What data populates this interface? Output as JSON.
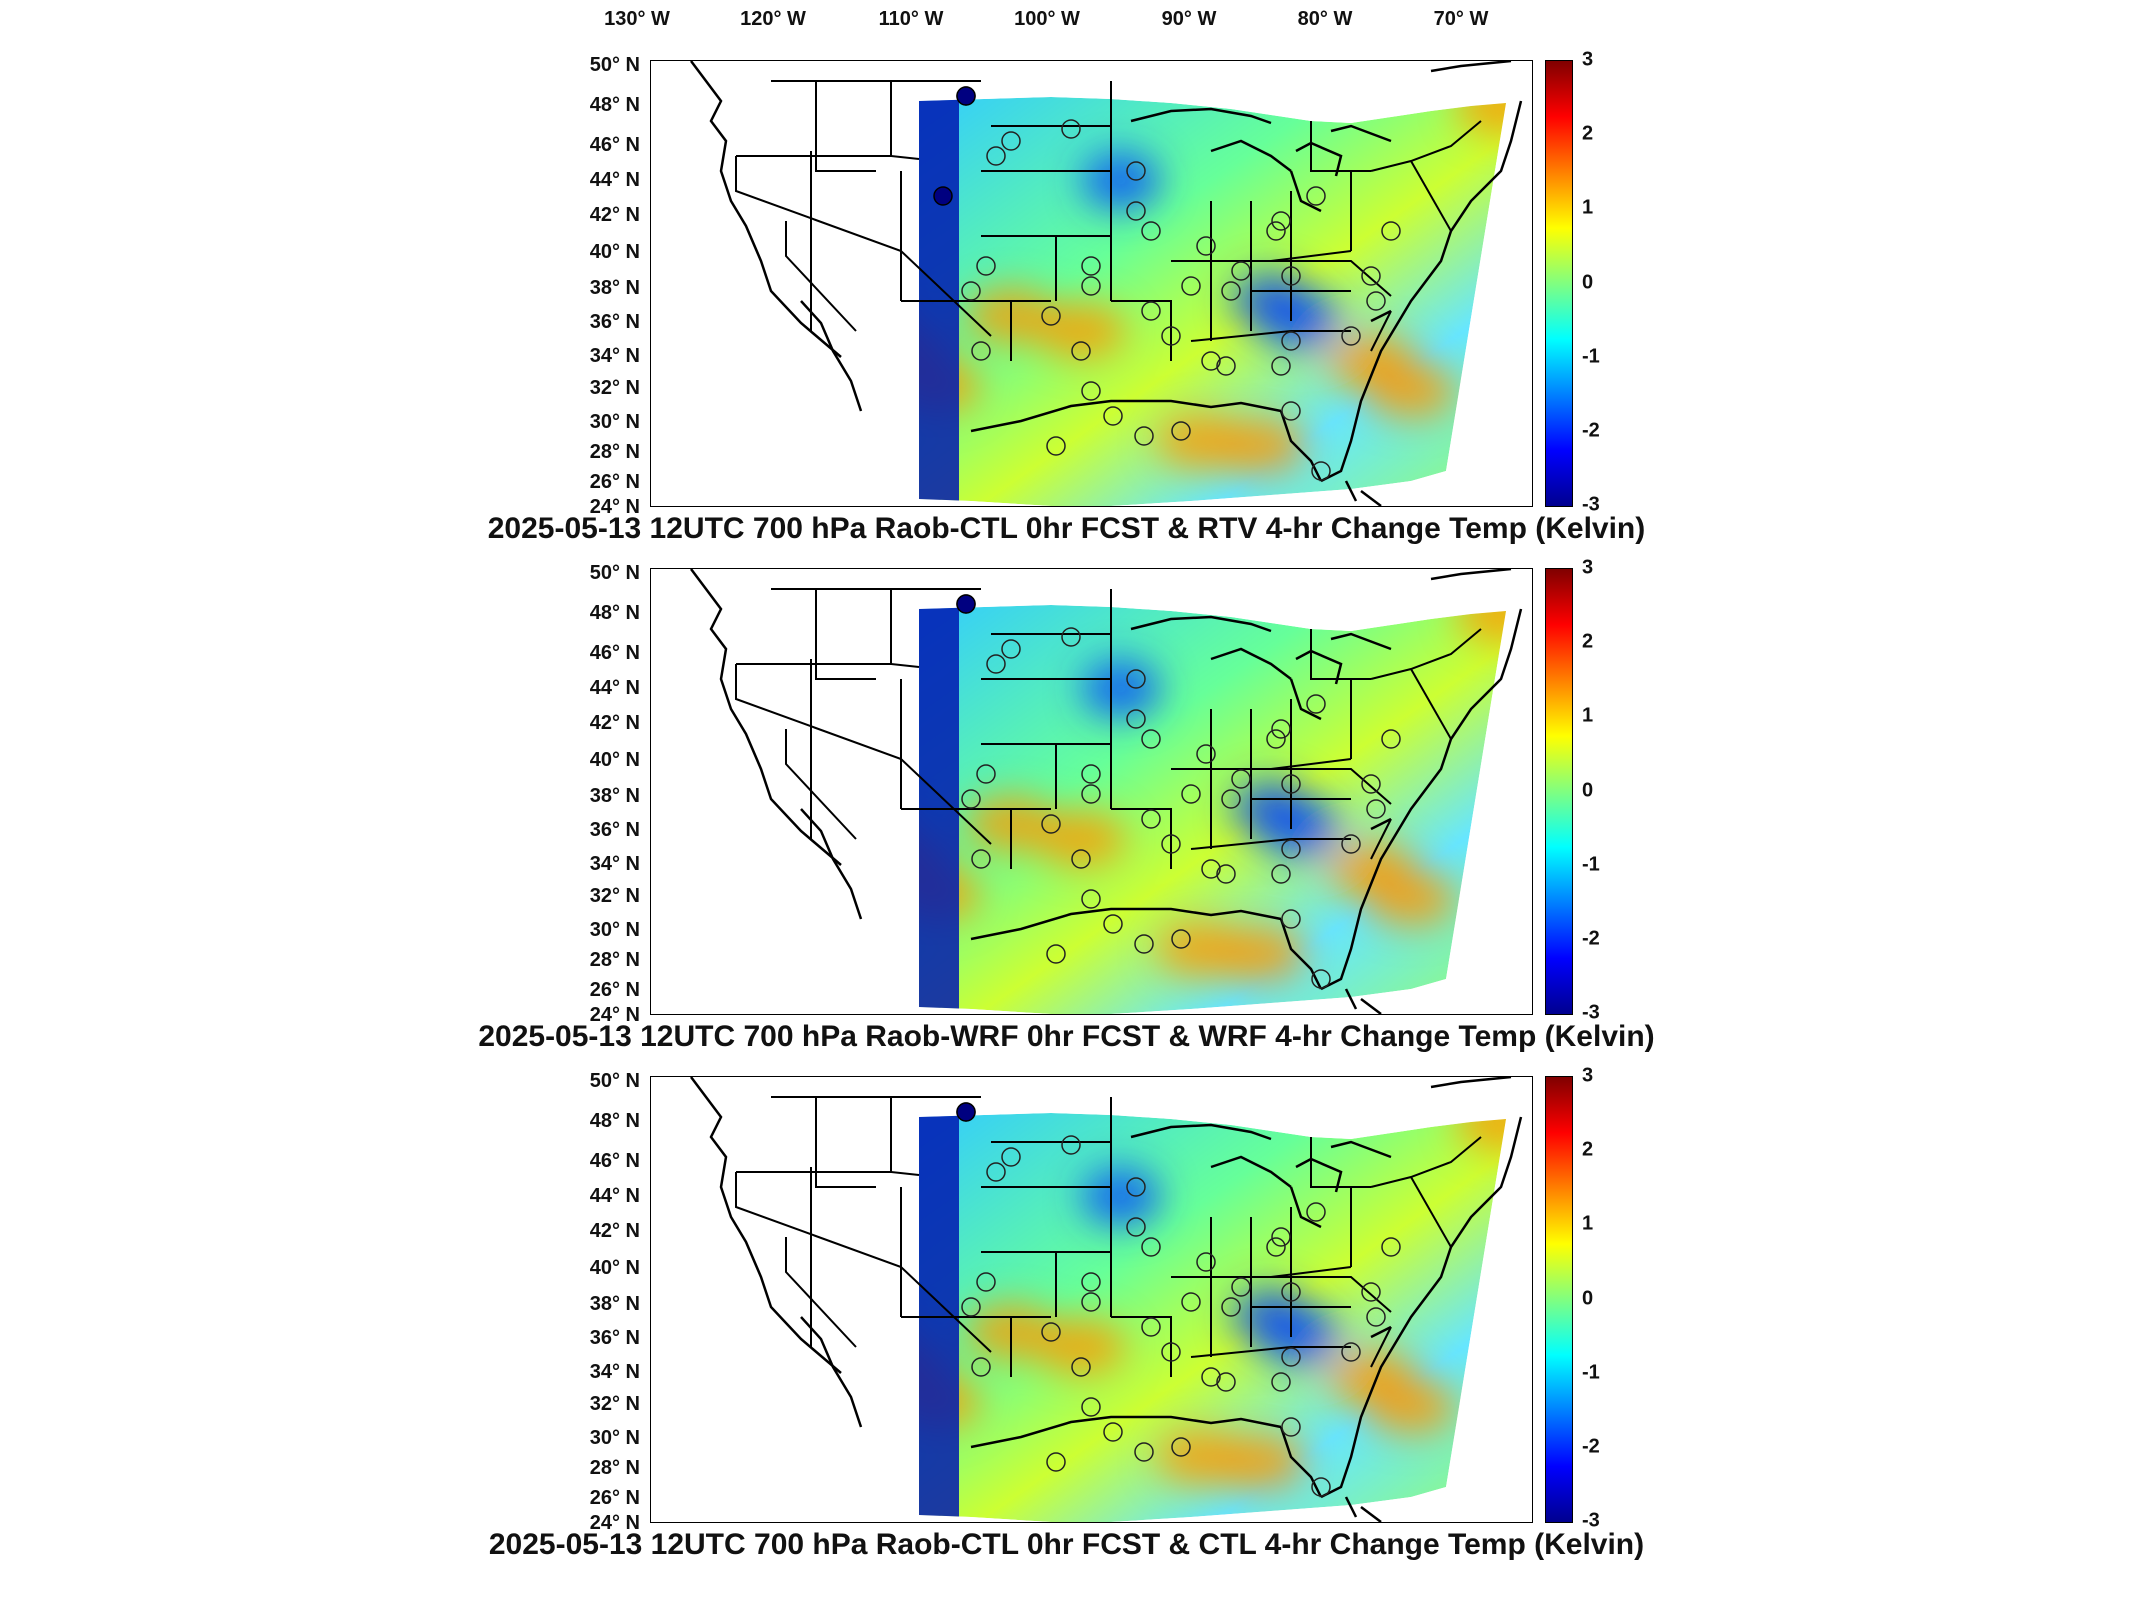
{
  "longitude_labels": [
    "130° W",
    "120° W",
    "110° W",
    "100° W",
    "90° W",
    "80° W",
    "70° W"
  ],
  "latitude_labels": [
    "50° N",
    "48° N",
    "46° N",
    "44° N",
    "42° N",
    "40° N",
    "38° N",
    "36° N",
    "34° N",
    "32° N",
    "30° N",
    "28° N",
    "26° N",
    "24° N"
  ],
  "colorbar": {
    "range": [
      -3,
      3
    ],
    "ticks": [
      "3",
      "2",
      "1",
      "0",
      "-1",
      "-2",
      "-3"
    ],
    "colormap": "jet"
  },
  "panels": [
    {
      "title": "2025-05-13 12UTC 700 hPa Raob-CTL 0hr FCST & RTV 4-hr Change Temp (Kelvin)"
    },
    {
      "title": "2025-05-13 12UTC 700 hPa Raob-WRF 0hr FCST & WRF 4-hr Change Temp (Kelvin)"
    },
    {
      "title": "2025-05-13 12UTC 700 hPa Raob-CTL 0hr FCST & CTL 4-hr Change Temp (Kelvin)"
    }
  ],
  "map_extent": {
    "lon": [
      -133,
      -67
    ],
    "lat": [
      24,
      50
    ]
  }
}
